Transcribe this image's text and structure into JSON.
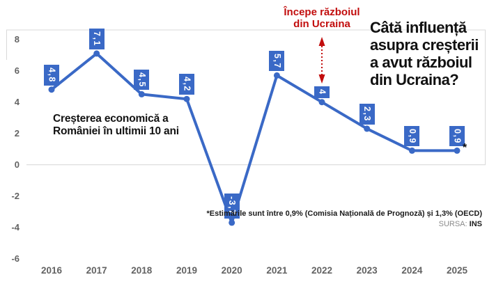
{
  "headline": {
    "text": "Câtă influență\nasupra creșterii\na avut războiul\ndin Ucraina?"
  },
  "annotation": {
    "text": "Începe războiul\ndin Ucraina",
    "color": "#c20d0d",
    "arrow": "double-headed-dotted-vertical"
  },
  "footnote": {
    "text": "*Estimările sunt între 0,9% (Comisia Națională de Prognoză) și 1,3% (OECD)"
  },
  "source": {
    "label": "SURSA:",
    "value": "INS"
  },
  "chart_data": {
    "type": "line",
    "title": "Creșterea economică a\nRomâniei în ultimii 10 ani",
    "categories": [
      "2016",
      "2017",
      "2018",
      "2019",
      "2020",
      "2021",
      "2022",
      "2023",
      "2024",
      "2025"
    ],
    "values": [
      4.8,
      7.1,
      4.5,
      4.2,
      -3.7,
      5.7,
      4,
      2.3,
      0.9,
      0.9
    ],
    "point_labels": [
      "4,8",
      "7,1",
      "4,5",
      "4,2",
      "-3,7",
      "5,7",
      "4",
      "2,3",
      "0,9",
      "0,9"
    ],
    "estimate_marker": "*",
    "yticks": [
      "8",
      "6",
      "4",
      "2",
      "0",
      "-2",
      "-4",
      "-6"
    ],
    "ytick_values": [
      8,
      6,
      4,
      2,
      0,
      -2,
      -4,
      -6
    ],
    "ylim": [
      -6,
      8
    ],
    "grid": "zero-line-and-top-right-border-only",
    "legend": "none",
    "colors": {
      "line": "#3a69c6",
      "marker": "#3a69c6",
      "label_box": "#3a69c6",
      "label_text": "#ffffff",
      "grid": "#d9d9d9",
      "tick_text": "#636363"
    }
  }
}
